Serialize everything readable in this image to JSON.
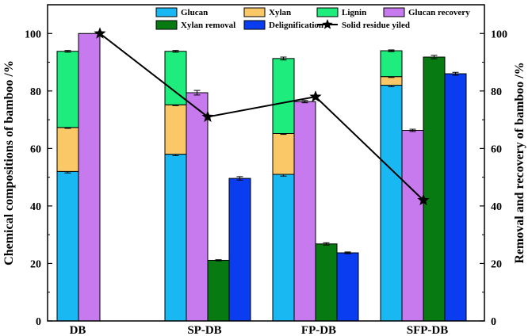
{
  "chart_data": {
    "type": "bar",
    "categories": [
      "DB",
      "SP-DB",
      "FP-DB",
      "SFP-DB"
    ],
    "left_axis": {
      "label": "Chemical compositions of bamboo /%",
      "ylim": [
        0,
        110
      ],
      "ticks": [
        0,
        20,
        40,
        60,
        80,
        100
      ]
    },
    "right_axis": {
      "label": "Removal and recovery of bamboo /%",
      "ylim": [
        0,
        110
      ],
      "ticks": [
        0,
        20,
        40,
        60,
        80,
        100
      ]
    },
    "stacked_series": [
      {
        "name": "Glucan",
        "color": "#1ab8f2",
        "values": [
          52.0,
          58.0,
          51.0,
          82.0
        ],
        "errors": [
          0.5,
          0.5,
          0.6,
          0.5
        ]
      },
      {
        "name": "Xylan",
        "color": "#fbc867",
        "values": [
          15.3,
          17.2,
          14.2,
          3.0
        ],
        "errors": [
          0.3,
          0.3,
          0.3,
          0.3
        ]
      },
      {
        "name": "Lignin",
        "color": "#1eec7c",
        "values": [
          26.5,
          18.6,
          26.1,
          9.0
        ],
        "errors": [
          0.3,
          0.3,
          0.5,
          0.3
        ]
      }
    ],
    "bar_series": [
      {
        "name": "Glucan recovery",
        "color": "#c779ee",
        "values": [
          100.0,
          79.4,
          76.3,
          66.3
        ],
        "errors": [
          0,
          0.8,
          0.4,
          0.4
        ]
      },
      {
        "name": "Xylan removal",
        "color": "#077a12",
        "values": [
          null,
          21.1,
          26.8,
          91.8
        ],
        "errors": [
          0,
          0.2,
          0.4,
          0.6
        ]
      },
      {
        "name": "Delignification",
        "color": "#0a3cf0",
        "values": [
          null,
          49.6,
          23.7,
          86.0
        ],
        "errors": [
          0,
          0.6,
          0.3,
          0.5
        ]
      }
    ],
    "line_series": {
      "name": "Solid residue yiled",
      "color": "#000000",
      "marker": "star",
      "values": [
        100.0,
        71.0,
        78.0,
        42.0
      ]
    },
    "legend_position": "top-center"
  }
}
